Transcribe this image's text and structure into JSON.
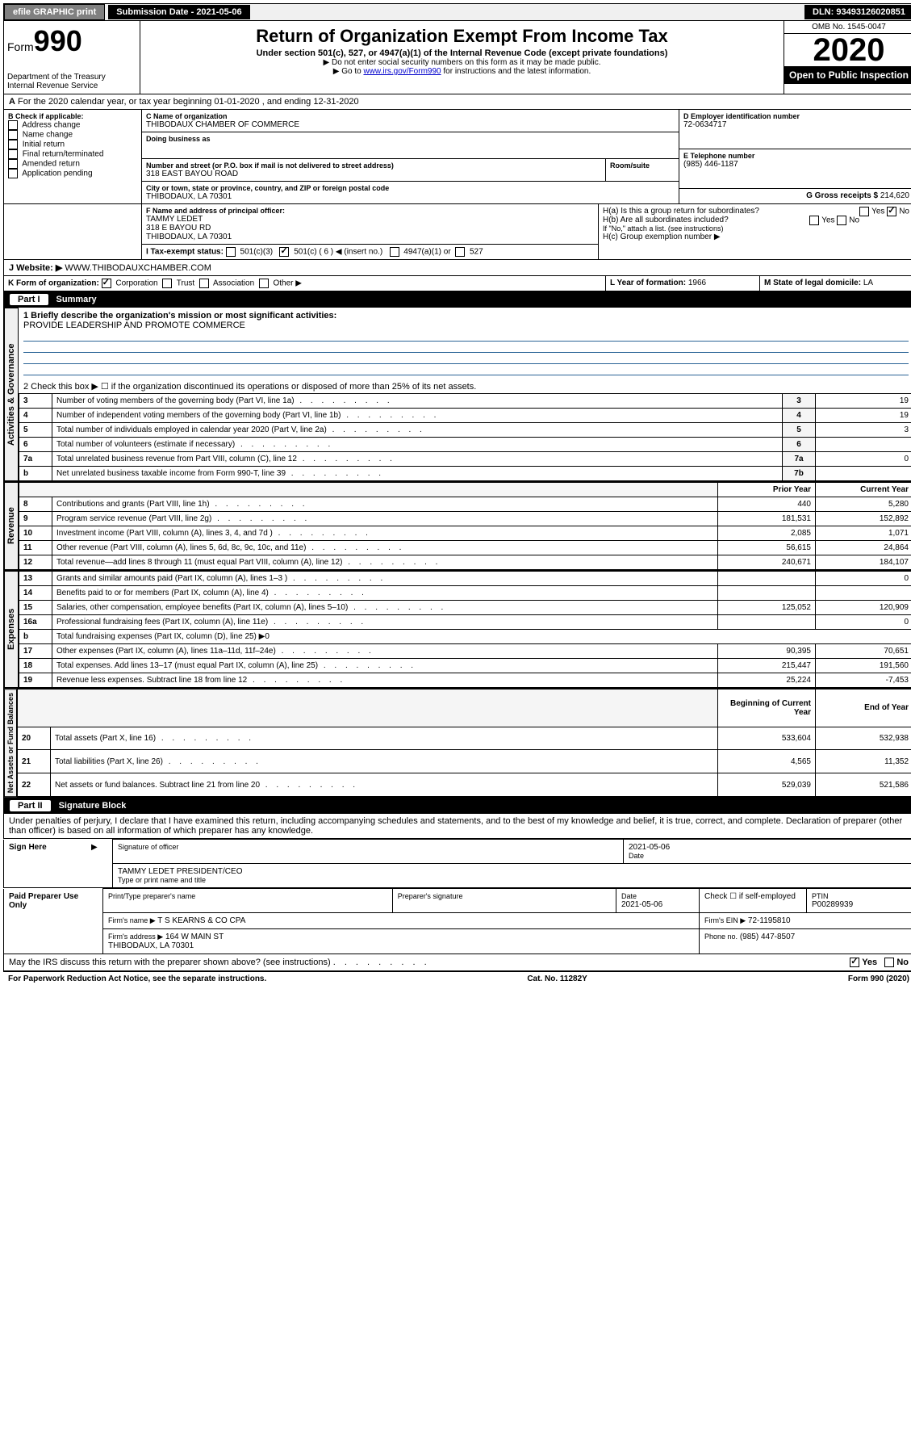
{
  "topbar": {
    "efile": "efile GRAPHIC print",
    "submission": "Submission Date - 2021-05-06",
    "dln": "DLN: 93493126020851"
  },
  "header": {
    "form_word": "Form",
    "form_number": "990",
    "dept1": "Department of the Treasury",
    "dept2": "Internal Revenue Service",
    "title": "Return of Organization Exempt From Income Tax",
    "subtitle": "Under section 501(c), 527, or 4947(a)(1) of the Internal Revenue Code (except private foundations)",
    "note1": "▶ Do not enter social security numbers on this form as it may be made public.",
    "note2_pre": "▶ Go to ",
    "note2_link": "www.irs.gov/Form990",
    "note2_post": " for instructions and the latest information.",
    "omb": "OMB No. 1545-0047",
    "year": "2020",
    "open": "Open to Public Inspection"
  },
  "periodA": "For the 2020 calendar year, or tax year beginning 01-01-2020   , and ending 12-31-2020",
  "boxB": {
    "header": "B Check if applicable:",
    "opts": [
      "Address change",
      "Name change",
      "Initial return",
      "Final return/terminated",
      "Amended return",
      "Application pending"
    ]
  },
  "boxC": {
    "label": "C Name of organization",
    "name": "THIBODAUX CHAMBER OF COMMERCE",
    "dba_label": "Doing business as",
    "addr_label": "Number and street (or P.O. box if mail is not delivered to street address)",
    "room_label": "Room/suite",
    "addr": "318 EAST BAYOU ROAD",
    "city_label": "City or town, state or province, country, and ZIP or foreign postal code",
    "city": "THIBODAUX, LA  70301"
  },
  "boxD": {
    "label": "D Employer identification number",
    "value": "72-0634717"
  },
  "boxE": {
    "label": "E Telephone number",
    "value": "(985) 446-1187"
  },
  "boxG": {
    "label": "G Gross receipts $",
    "value": "214,620"
  },
  "boxF": {
    "label": "F Name and address of principal officer:",
    "name": "TAMMY LEDET",
    "addr1": "318 E BAYOU RD",
    "addr2": "THIBODAUX, LA  70301"
  },
  "boxH": {
    "a": "H(a)  Is this a group return for subordinates?",
    "b": "H(b)  Are all subordinates included?",
    "b_note": "If \"No,\" attach a list. (see instructions)",
    "c": "H(c)  Group exemption number ▶",
    "yes": "Yes",
    "no": "No"
  },
  "boxI": {
    "label": "I  Tax-exempt status:",
    "o1": "501(c)(3)",
    "o2": "501(c) ( 6 ) ◀ (insert no.)",
    "o3": "4947(a)(1) or",
    "o4": "527"
  },
  "boxJ": {
    "label": "J  Website: ▶",
    "value": "WWW.THIBODAUXCHAMBER.COM"
  },
  "boxK": {
    "label": "K Form of organization:",
    "o1": "Corporation",
    "o2": "Trust",
    "o3": "Association",
    "o4": "Other ▶"
  },
  "boxL": {
    "label": "L Year of formation:",
    "value": "1966"
  },
  "boxM": {
    "label": "M State of legal domicile:",
    "value": "LA"
  },
  "partI": {
    "label": "Part I",
    "title": "Summary",
    "line1": "1  Briefly describe the organization's mission or most significant activities:",
    "mission": "PROVIDE LEADERSHIP AND PROMOTE COMMERCE",
    "line2": "2   Check this box ▶ ☐  if the organization discontinued its operations or disposed of more than 25% of its net assets.",
    "groups": {
      "ag": "Activities & Governance",
      "rev": "Revenue",
      "exp": "Expenses",
      "nafb": "Net Assets or Fund Balances"
    },
    "rows_ag": [
      {
        "n": "3",
        "text": "Number of voting members of the governing body (Part VI, line 1a)",
        "box": "3",
        "val": "19"
      },
      {
        "n": "4",
        "text": "Number of independent voting members of the governing body (Part VI, line 1b)",
        "box": "4",
        "val": "19"
      },
      {
        "n": "5",
        "text": "Total number of individuals employed in calendar year 2020 (Part V, line 2a)",
        "box": "5",
        "val": "3"
      },
      {
        "n": "6",
        "text": "Total number of volunteers (estimate if necessary)",
        "box": "6",
        "val": ""
      },
      {
        "n": "7a",
        "text": "Total unrelated business revenue from Part VIII, column (C), line 12",
        "box": "7a",
        "val": "0"
      },
      {
        "n": "b",
        "text": "Net unrelated business taxable income from Form 990-T, line 39",
        "box": "7b",
        "val": ""
      }
    ],
    "col_headers": {
      "prior": "Prior Year",
      "current": "Current Year",
      "begin": "Beginning of Current Year",
      "end": "End of Year"
    },
    "rows_rev": [
      {
        "n": "8",
        "text": "Contributions and grants (Part VIII, line 1h)",
        "py": "440",
        "cy": "5,280"
      },
      {
        "n": "9",
        "text": "Program service revenue (Part VIII, line 2g)",
        "py": "181,531",
        "cy": "152,892"
      },
      {
        "n": "10",
        "text": "Investment income (Part VIII, column (A), lines 3, 4, and 7d )",
        "py": "2,085",
        "cy": "1,071"
      },
      {
        "n": "11",
        "text": "Other revenue (Part VIII, column (A), lines 5, 6d, 8c, 9c, 10c, and 11e)",
        "py": "56,615",
        "cy": "24,864"
      },
      {
        "n": "12",
        "text": "Total revenue—add lines 8 through 11 (must equal Part VIII, column (A), line 12)",
        "py": "240,671",
        "cy": "184,107"
      }
    ],
    "rows_exp": [
      {
        "n": "13",
        "text": "Grants and similar amounts paid (Part IX, column (A), lines 1–3 )",
        "py": "",
        "cy": "0"
      },
      {
        "n": "14",
        "text": "Benefits paid to or for members (Part IX, column (A), line 4)",
        "py": "",
        "cy": ""
      },
      {
        "n": "15",
        "text": "Salaries, other compensation, employee benefits (Part IX, column (A), lines 5–10)",
        "py": "125,052",
        "cy": "120,909"
      },
      {
        "n": "16a",
        "text": "Professional fundraising fees (Part IX, column (A), line 11e)",
        "py": "",
        "cy": "0"
      },
      {
        "n": "b",
        "text": "Total fundraising expenses (Part IX, column (D), line 25) ▶0",
        "py": null,
        "cy": null
      },
      {
        "n": "17",
        "text": "Other expenses (Part IX, column (A), lines 11a–11d, 11f–24e)",
        "py": "90,395",
        "cy": "70,651"
      },
      {
        "n": "18",
        "text": "Total expenses. Add lines 13–17 (must equal Part IX, column (A), line 25)",
        "py": "215,447",
        "cy": "191,560"
      },
      {
        "n": "19",
        "text": "Revenue less expenses. Subtract line 18 from line 12",
        "py": "25,224",
        "cy": "-7,453"
      }
    ],
    "rows_na": [
      {
        "n": "20",
        "text": "Total assets (Part X, line 16)",
        "py": "533,604",
        "cy": "532,938"
      },
      {
        "n": "21",
        "text": "Total liabilities (Part X, line 26)",
        "py": "4,565",
        "cy": "11,352"
      },
      {
        "n": "22",
        "text": "Net assets or fund balances. Subtract line 21 from line 20",
        "py": "529,039",
        "cy": "521,586"
      }
    ]
  },
  "partII": {
    "label": "Part II",
    "title": "Signature Block",
    "decl": "Under penalties of perjury, I declare that I have examined this return, including accompanying schedules and statements, and to the best of my knowledge and belief, it is true, correct, and complete. Declaration of preparer (other than officer) is based on all information of which preparer has any knowledge.",
    "sign_here": "Sign Here",
    "sig_officer_label": "Signature of officer",
    "sig_date": "2021-05-06",
    "date_label": "Date",
    "officer_name": "TAMMY LEDET  PRESIDENT/CEO",
    "type_name_label": "Type or print name and title",
    "paid_prep": "Paid Preparer Use Only",
    "prep_name_label": "Print/Type preparer's name",
    "prep_sig_label": "Preparer's signature",
    "prep_date": "2021-05-06",
    "check_self": "Check ☐ if self-employed",
    "ptin_label": "PTIN",
    "ptin": "P00289939",
    "firm_name_label": "Firm's name    ▶",
    "firm_name": "T S KEARNS & CO CPA",
    "firm_ein_label": "Firm's EIN ▶",
    "firm_ein": "72-1195810",
    "firm_addr_label": "Firm's address ▶",
    "firm_addr1": "164 W MAIN ST",
    "firm_addr2": "THIBODAUX, LA  70301",
    "firm_phone_label": "Phone no.",
    "firm_phone": "(985) 447-8507",
    "discuss": "May the IRS discuss this return with the preparer shown above? (see instructions)",
    "yes": "Yes",
    "no": "No"
  },
  "footer": {
    "paperwork": "For Paperwork Reduction Act Notice, see the separate instructions.",
    "cat": "Cat. No. 11282Y",
    "form": "Form 990 (2020)"
  }
}
